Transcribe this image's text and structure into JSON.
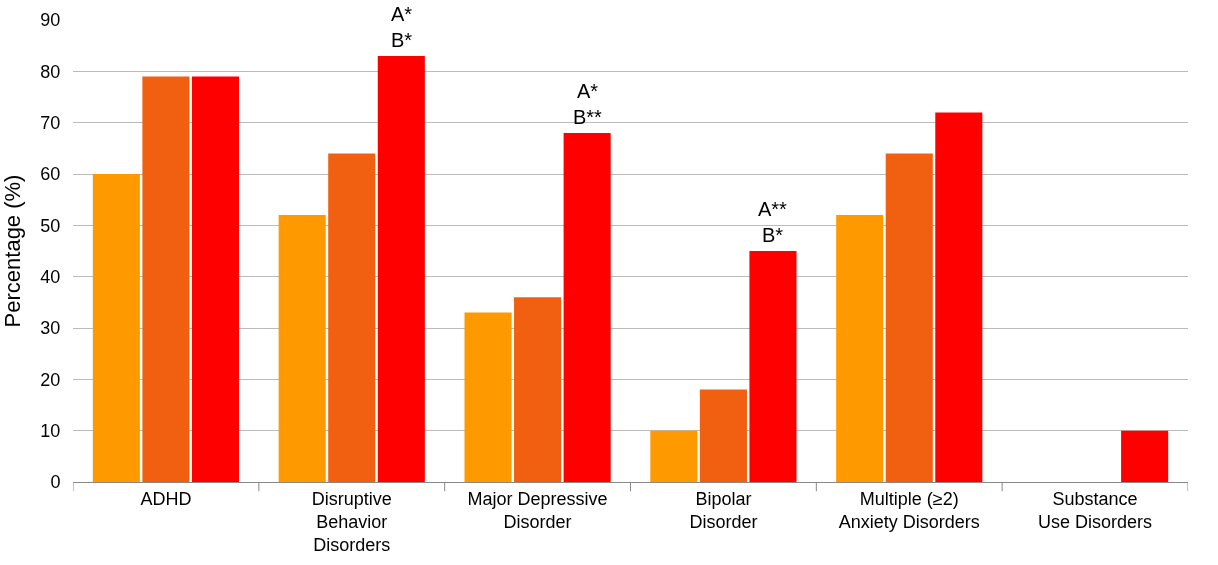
{
  "chart_data": {
    "type": "bar",
    "ylabel": "Percentage (%)",
    "categories": [
      "ADHD",
      "Disruptive\nBehavior\nDisorders",
      "Major Depressive\nDisorder",
      "Bipolar\nDisorder",
      "Multiple (≥2)\nAnxiety Disorders",
      "Substance\nUse Disorders"
    ],
    "series": [
      {
        "color": "#ff9900",
        "values": [
          60,
          52,
          33,
          10,
          52,
          0
        ]
      },
      {
        "color": "#f06010",
        "values": [
          79,
          64,
          36,
          18,
          64,
          0
        ]
      },
      {
        "color": "#ff0000",
        "values": [
          79,
          83,
          68,
          45,
          72,
          10
        ]
      }
    ],
    "ylim": [
      0,
      90
    ],
    "yticks": [
      0,
      10,
      20,
      30,
      40,
      50,
      60,
      70,
      80,
      90
    ],
    "grid": "y",
    "annotations": [
      "A*\nB*",
      "A*\nB**",
      "A**\nB*"
    ]
  }
}
